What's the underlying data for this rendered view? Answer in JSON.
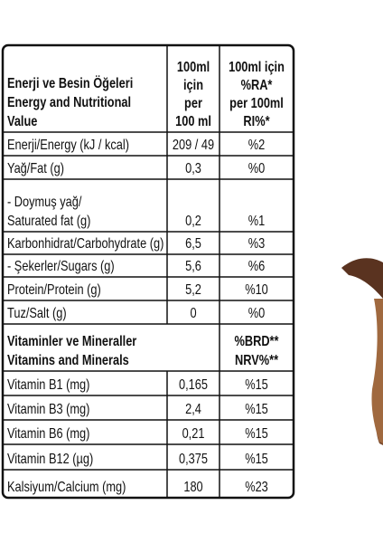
{
  "table": {
    "header": [
      [
        "Enerji ve Besin Öğeleri",
        "Energy and Nutritional",
        "Value"
      ],
      [
        "100ml",
        "için",
        "per",
        "100 ml"
      ],
      [
        "100ml için",
        "%RA*",
        "per 100ml",
        "RI%*"
      ]
    ],
    "rows": [
      [
        "Enerji/Energy (kJ / kcal)",
        "209 / 49",
        "%2"
      ],
      [
        "Yağ/Fat (g)",
        "0,3",
        "%0"
      ],
      [
        [
          "- Doymuş yağ/",
          "Saturated fat (g)"
        ],
        "0,2",
        "%1"
      ],
      [
        "Karbonhidrat/Carbohydrate (g)",
        "6,5",
        "%3"
      ],
      [
        "- Şekerler/Sugars (g)",
        "5,6",
        "%6"
      ],
      [
        "Protein/Protein (g)",
        "5,2",
        "%10"
      ],
      [
        "Tuz/Salt (g)",
        "0",
        "%0"
      ]
    ],
    "vitamin_header": [
      [
        "Vitaminler ve Mineraller",
        "Vitamins and Minerals"
      ],
      [
        "%BRD**",
        "NRV%**"
      ]
    ],
    "vitamin_rows": [
      [
        "Vitamin B1 (mg)",
        "0,165",
        "%15"
      ],
      [
        "Vitamin B3 (mg)",
        "2,4",
        "%15"
      ],
      [
        "Vitamin B6 (mg)",
        "0,21",
        "%15"
      ],
      [
        "Vitamin B12 (µg)",
        "0,375",
        "%15"
      ],
      [
        "Kalsiyum/Calcium (mg)",
        "180",
        "%23"
      ]
    ]
  }
}
